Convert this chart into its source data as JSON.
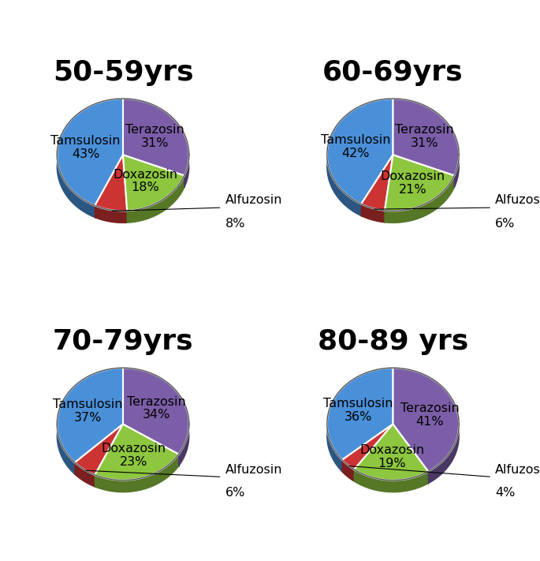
{
  "charts": [
    {
      "title": "50-59yrs",
      "values": [
        43,
        8,
        18,
        31
      ],
      "labels": [
        "Tamsulosin",
        "Alfuzosin",
        "Doxazosin",
        "Terazosin"
      ],
      "percents": [
        "43%",
        "8%",
        "18%",
        "31%"
      ],
      "colors": [
        "#4A90D9",
        "#CC3333",
        "#8DC63F",
        "#7B5EA7"
      ],
      "startangle": 90
    },
    {
      "title": "60-69yrs",
      "values": [
        42,
        6,
        21,
        31
      ],
      "labels": [
        "Tamsulosin",
        "Alfuzosin",
        "Doxazosin",
        "Terazosin"
      ],
      "percents": [
        "42%",
        "6%",
        "21%",
        "31%"
      ],
      "colors": [
        "#4A90D9",
        "#CC3333",
        "#8DC63F",
        "#7B5EA7"
      ],
      "startangle": 90
    },
    {
      "title": "70-79yrs",
      "values": [
        37,
        6,
        23,
        34
      ],
      "labels": [
        "Tamsulosin",
        "Alfuzosin",
        "Doxazosin",
        "Terazosin"
      ],
      "percents": [
        "37%",
        "6%",
        "23%",
        "34%"
      ],
      "colors": [
        "#4A90D9",
        "#CC3333",
        "#8DC63F",
        "#7B5EA7"
      ],
      "startangle": 90
    },
    {
      "title": "80-89 yrs",
      "values": [
        36,
        4,
        19,
        41
      ],
      "labels": [
        "Tamsulosin",
        "Alfuzosin",
        "Doxazosin",
        "Terazosin"
      ],
      "percents": [
        "36%",
        "4%",
        "19%",
        "41%"
      ],
      "colors": [
        "#4A90D9",
        "#CC3333",
        "#8DC63F",
        "#7B5EA7"
      ],
      "startangle": 90
    }
  ],
  "background_color": "#FFFFFF",
  "title_fontsize": 26,
  "label_fontsize": 11.5,
  "pct_fontsize": 11.5
}
